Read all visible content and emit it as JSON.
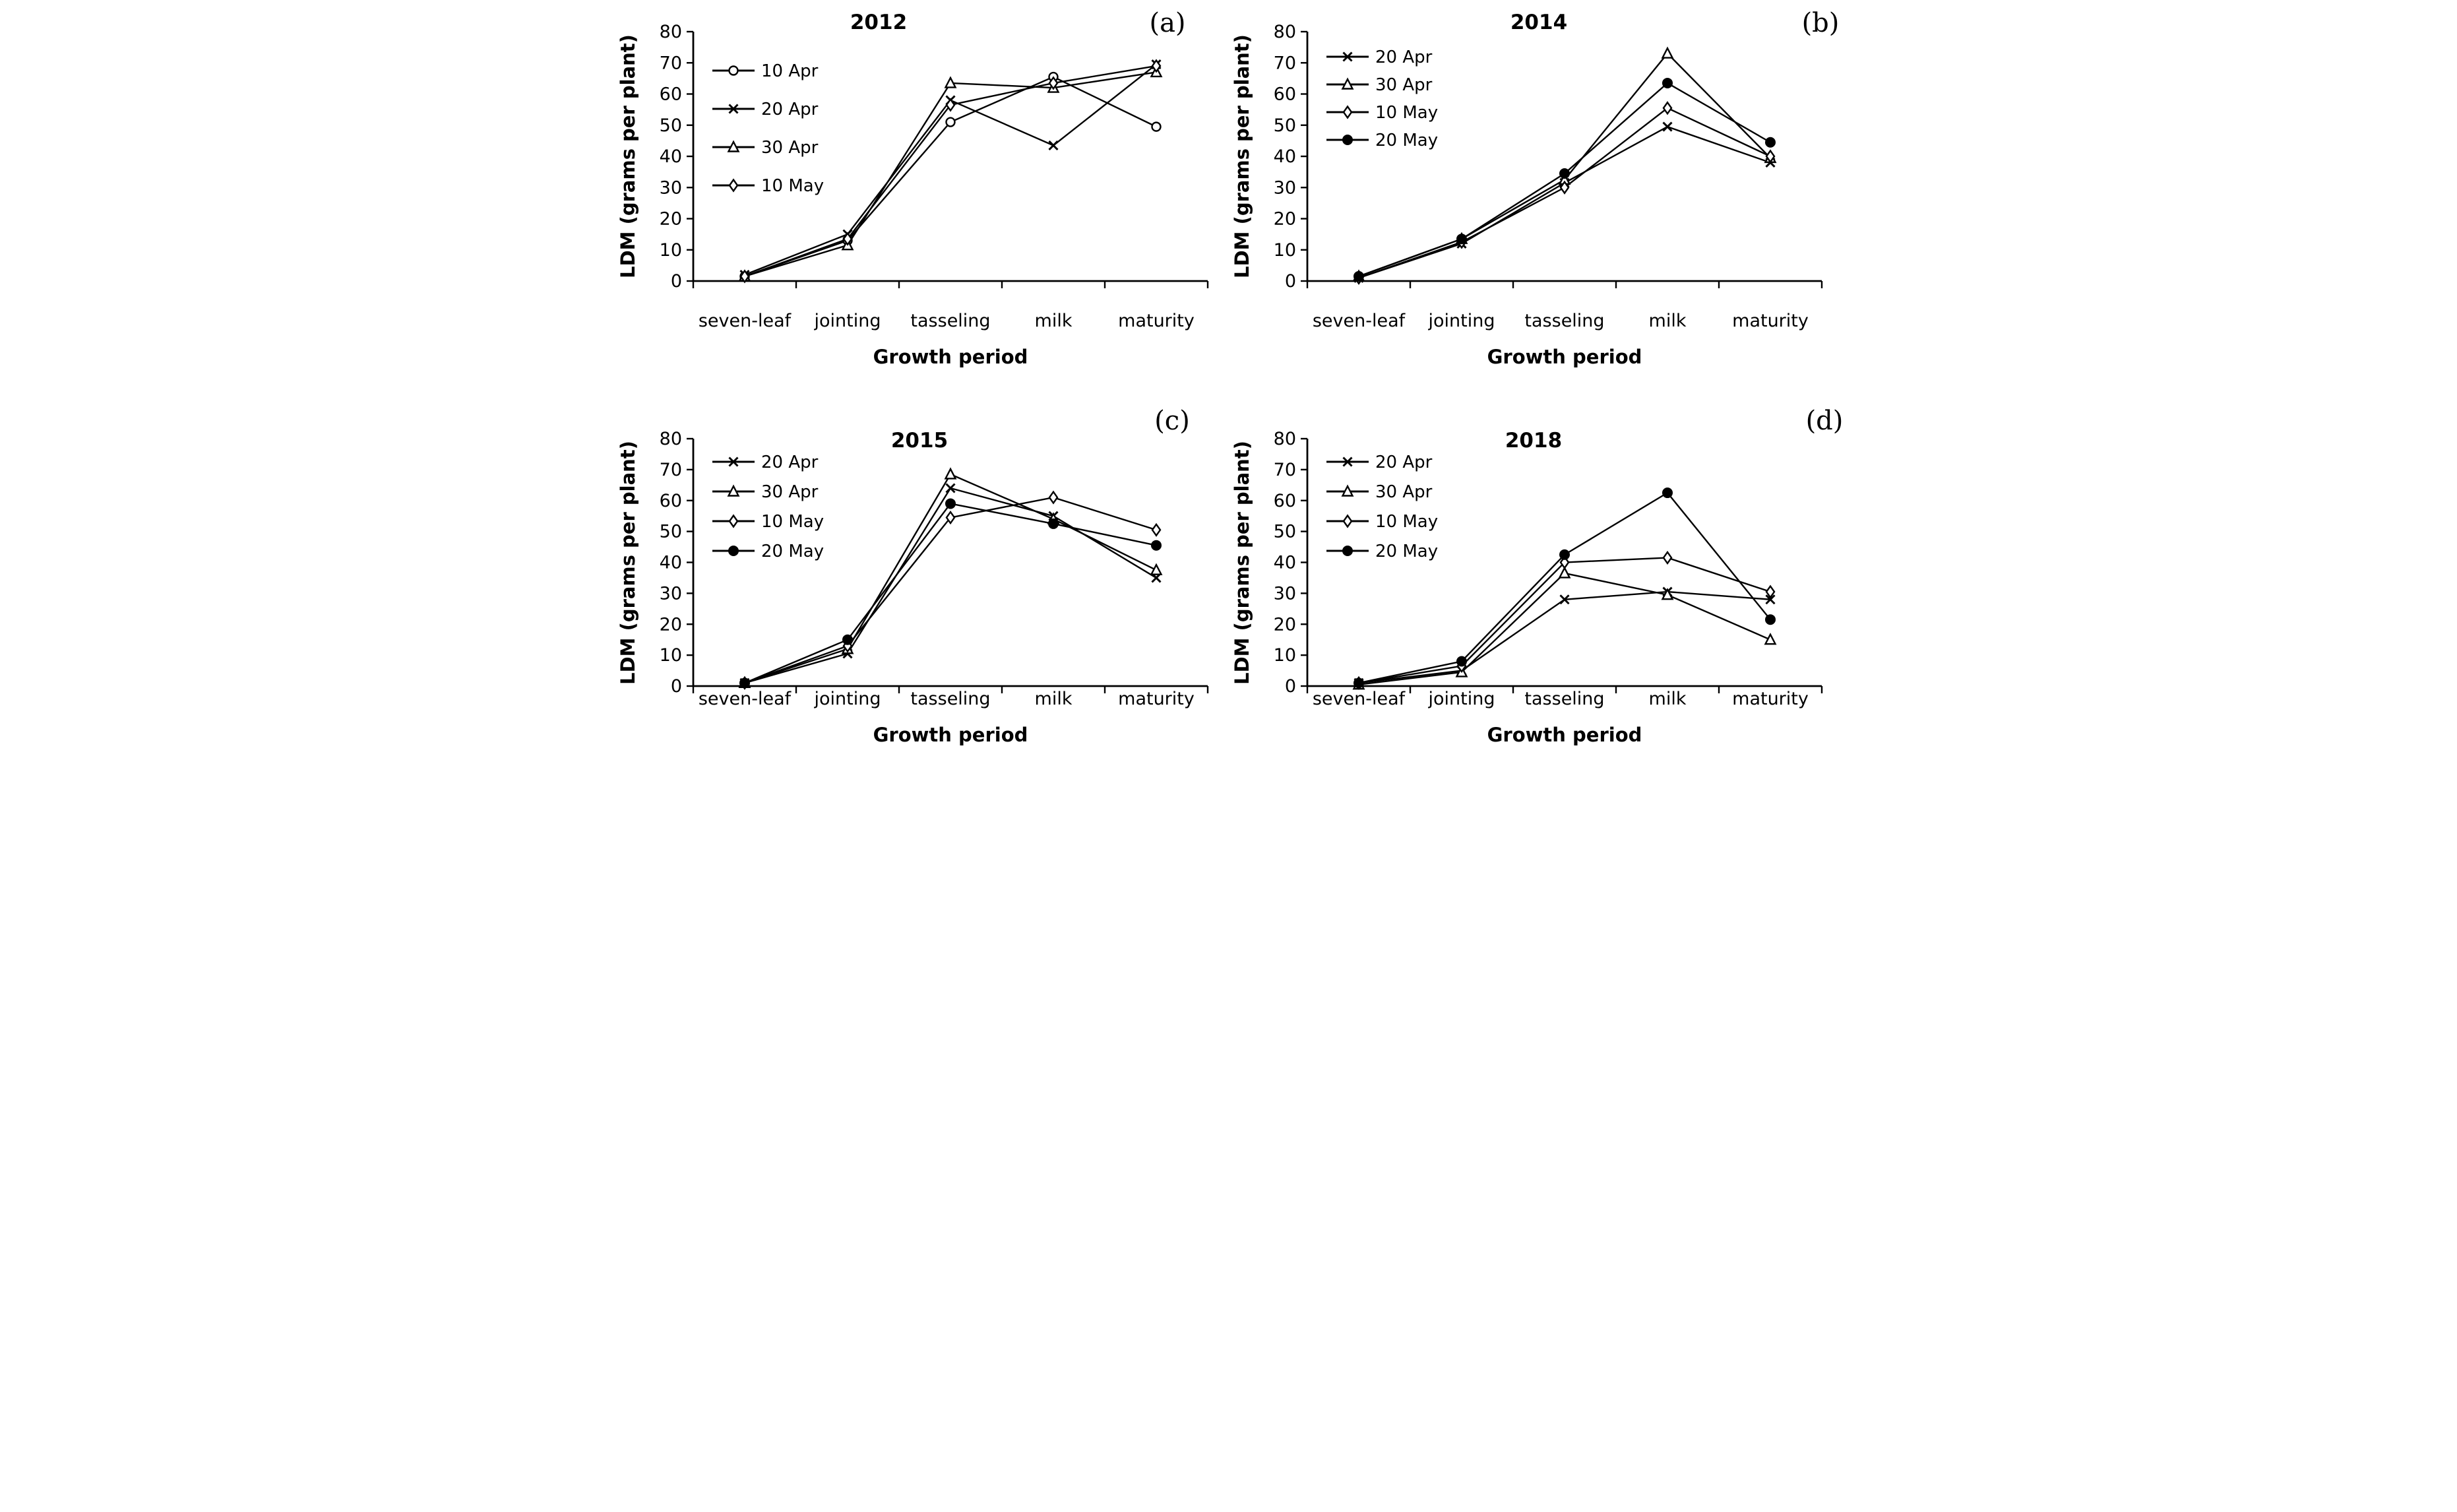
{
  "figure": {
    "background_color": "#ffffff",
    "line_color": "#000000",
    "panels_order": [
      "(a)",
      "(b)",
      "(c)",
      "(d)"
    ]
  },
  "chart_data": [
    {
      "type": "line",
      "panel_letter": "(a)",
      "title": "2012",
      "xlabel": "Growth period",
      "ylabel": "LDM (grams per plant)",
      "ylim": [
        0,
        80
      ],
      "yticks": [
        0,
        10,
        20,
        30,
        40,
        50,
        60,
        70,
        80
      ],
      "categories": [
        "seven-leaf",
        "jointing",
        "tasseling",
        "milk",
        "maturity"
      ],
      "grid": false,
      "legend_position": "upper-left-inside",
      "series": [
        {
          "name": "10 Apr",
          "marker": "circle-open",
          "values": [
            1.5,
            13,
            51,
            65.5,
            49.5
          ]
        },
        {
          "name": "20 Apr",
          "marker": "x",
          "values": [
            2,
            15,
            58,
            43.5,
            69.5
          ]
        },
        {
          "name": "30 Apr",
          "marker": "triangle-open",
          "values": [
            1.5,
            11.5,
            63.5,
            62,
            67
          ]
        },
        {
          "name": "10 May",
          "marker": "diamond-open",
          "values": [
            1.5,
            13.5,
            56.5,
            63.5,
            69
          ]
        }
      ]
    },
    {
      "type": "line",
      "panel_letter": "(b)",
      "title": "2014",
      "xlabel": "Growth period",
      "ylabel": "LDM (grams per plant)",
      "ylim": [
        0,
        80
      ],
      "yticks": [
        0,
        10,
        20,
        30,
        40,
        50,
        60,
        70,
        80
      ],
      "categories": [
        "seven-leaf",
        "jointing",
        "tasseling",
        "milk",
        "maturity"
      ],
      "grid": false,
      "legend_position": "upper-left-inside",
      "series": [
        {
          "name": "20 Apr",
          "marker": "x",
          "values": [
            1,
            12,
            31.5,
            49.5,
            38
          ]
        },
        {
          "name": "30 Apr",
          "marker": "triangle-open",
          "values": [
            1.5,
            13.5,
            32.5,
            73,
            39.5
          ]
        },
        {
          "name": "10 May",
          "marker": "diamond-open",
          "values": [
            1,
            12.5,
            30,
            55.5,
            40
          ]
        },
        {
          "name": "20 May",
          "marker": "circle-filled",
          "values": [
            1.5,
            13.5,
            34.5,
            63.5,
            44.5
          ]
        }
      ]
    },
    {
      "type": "line",
      "panel_letter": "(c)",
      "title": "2015",
      "xlabel": "Growth period",
      "ylabel": "LDM (grams per plant)",
      "ylim": [
        0,
        80
      ],
      "yticks": [
        0,
        10,
        20,
        30,
        40,
        50,
        60,
        70,
        80
      ],
      "categories": [
        "seven-leaf",
        "jointing",
        "tasseling",
        "milk",
        "maturity"
      ],
      "grid": false,
      "legend_position": "upper-left-inside",
      "series": [
        {
          "name": "20 Apr",
          "marker": "x",
          "values": [
            1,
            10.5,
            64,
            55,
            35
          ]
        },
        {
          "name": "30 Apr",
          "marker": "triangle-open",
          "values": [
            1,
            12,
            68.5,
            54,
            37.5
          ]
        },
        {
          "name": "10 May",
          "marker": "diamond-open",
          "values": [
            1,
            13,
            54.5,
            61,
            50.5
          ]
        },
        {
          "name": "20 May",
          "marker": "circle-filled",
          "values": [
            1,
            15,
            59,
            52.5,
            45.5
          ]
        }
      ]
    },
    {
      "type": "line",
      "panel_letter": "(d)",
      "title": "2018",
      "xlabel": "Growth period",
      "ylabel": "LDM (grams per plant)",
      "ylim": [
        0,
        80
      ],
      "yticks": [
        0,
        10,
        20,
        30,
        40,
        50,
        60,
        70,
        80
      ],
      "categories": [
        "seven-leaf",
        "jointing",
        "tasseling",
        "milk",
        "maturity"
      ],
      "grid": false,
      "legend_position": "upper-left-inside",
      "series": [
        {
          "name": "20 Apr",
          "marker": "x",
          "values": [
            1,
            5,
            28,
            30.5,
            28
          ]
        },
        {
          "name": "30 Apr",
          "marker": "triangle-open",
          "values": [
            0.5,
            4.5,
            36.5,
            29.5,
            15
          ]
        },
        {
          "name": "10 May",
          "marker": "diamond-open",
          "values": [
            1,
            6.5,
            40,
            41.5,
            30.5
          ]
        },
        {
          "name": "20 May",
          "marker": "circle-filled",
          "values": [
            1,
            8,
            42.5,
            62.5,
            21.5
          ]
        }
      ]
    }
  ]
}
